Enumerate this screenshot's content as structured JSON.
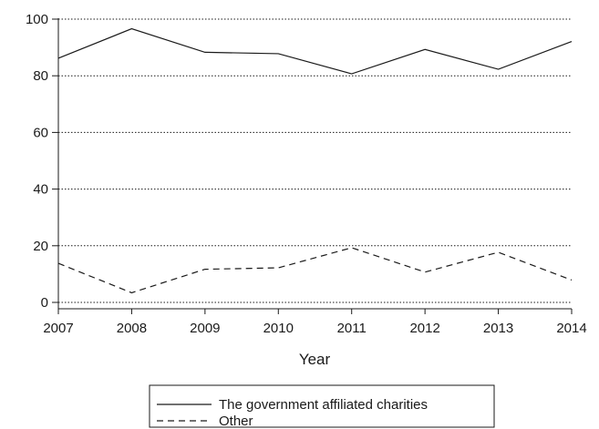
{
  "chart_data": {
    "type": "line",
    "xlabel": "Year",
    "ylabel": "",
    "x": [
      2007,
      2008,
      2009,
      2010,
      2011,
      2012,
      2013,
      2014
    ],
    "xlim": [
      2007,
      2014
    ],
    "ylim": [
      0,
      100
    ],
    "yticks": [
      0,
      20,
      40,
      60,
      80,
      100
    ],
    "grid": "horizontal dotted lines at each y tick",
    "legend_position": "bottom",
    "series": [
      {
        "name": "The government affiliated charities",
        "style": "solid",
        "color": "#1a1a1a",
        "values": [
          86.2,
          96.6,
          88.3,
          87.8,
          80.7,
          89.3,
          82.3,
          92.1
        ]
      },
      {
        "name": "Other",
        "style": "dashed",
        "color": "#1a1a1a",
        "values": [
          13.8,
          3.4,
          11.7,
          12.2,
          19.3,
          10.7,
          17.7,
          7.9
        ]
      }
    ]
  }
}
